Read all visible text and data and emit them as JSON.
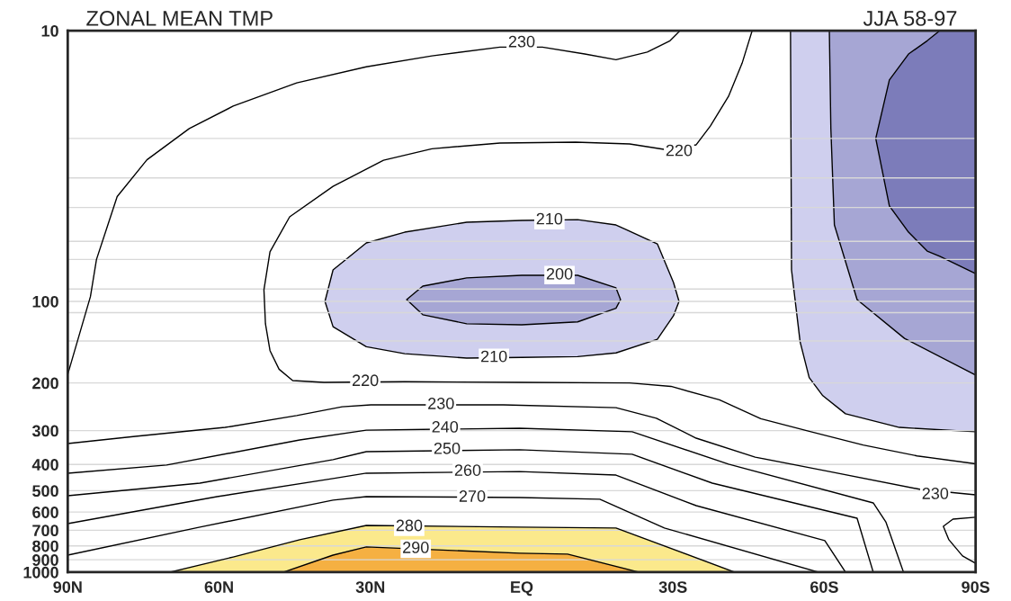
{
  "chart_data": {
    "type": "line",
    "title": "ZONAL MEAN TMP",
    "subtitle": "JJA 58-97",
    "series": [
      {
        "x": [
          -53.3,
          -53.5,
          -55.2,
          -57.0,
          -59.7,
          -64.2,
          -74.9,
          -90
        ],
        "values": [
          null,
          null,
          null,
          null,
          null,
          null,
          null,
          null
        ],
        "lower": [
          10,
          10,
          10,
          10,
          10,
          10,
          10,
          10
        ],
        "upper": [
          10,
          76.5,
          141,
          191,
          223,
          260,
          292,
          303
        ],
        "color": "#cfcfee"
      },
      {
        "x": [
          -61.0,
          -61.3,
          -62.0,
          -66.5,
          -75.9,
          -90
        ],
        "values": [
          null,
          null,
          null,
          null,
          null,
          null
        ],
        "lower": [
          10,
          10,
          10,
          10,
          10,
          10
        ],
        "upper": [
          10,
          23,
          52.2,
          98.5,
          137,
          187
        ],
        "color": "#a6a6d4"
      },
      {
        "x": [
          -70.2,
          -72.9,
          -76.7,
          -80.4,
          -82.9,
          -90
        ],
        "values": [
          null,
          null,
          null,
          null,
          null,
          null
        ],
        "lower": [
          25.0,
          15.2,
          12.2,
          10.9,
          10,
          10
        ],
        "upper": [
          25.0,
          44.4,
          55.5,
          65.2,
          68.2,
          78.9
        ],
        "color": "#7c7cba"
      },
      {
        "x": [
          39.0,
          37.4,
          30.8,
          23.2,
          10.9,
          0,
          -11.1,
          -18.7,
          -26.9,
          -30.1,
          -31.2
        ],
        "values": [
          null,
          null,
          null,
          null,
          null,
          null,
          null,
          null,
          null,
          null,
          null
        ],
        "lower": [
          100,
          76.5,
          60.8,
          55.5,
          51.0,
          50.2,
          49.9,
          52.2,
          61.3,
          85.2,
          100
        ],
        "upper": [
          100,
          124,
          147,
          156,
          162,
          161,
          160,
          155,
          138,
          113,
          100
        ],
        "color": "#cfcfee"
      },
      {
        "x": [
          22.8,
          19.6,
          10.9,
          0,
          -11.1,
          -18.7,
          -19.6
        ],
        "values": [
          null,
          null,
          null,
          null,
          null,
          null,
          null
        ],
        "lower": [
          98.5,
          87.8,
          81.9,
          80.1,
          80.1,
          89.1,
          98.5
        ],
        "upper": [
          98.5,
          112,
          121,
          122,
          119,
          106,
          98.5
        ],
        "color": "#a6a6d4"
      },
      {
        "type": "area",
        "x": [
          69.7,
          57.2,
          44.0,
          30.8,
          0.4,
          -18.7,
          -42.2
        ],
        "values": [
          1000,
          879,
          759,
          672,
          682,
          687,
          1000
        ],
        "color": "#fbe98c"
      },
      {
        "type": "area",
        "x": [
          47.2,
          37.4,
          30.8,
          0.4,
          -9.1,
          -23.2
        ],
        "values": [
          1000,
          865,
          807,
          851,
          858,
          1000
        ],
        "color": "#f5b042"
      },
      {
        "x": [
          90,
          85.5,
          84.3,
          80.2,
          74.3,
          65.9,
          57.2,
          44.6,
          30.8,
          17.8,
          4.3,
          -4.1,
          -12.5,
          -18.7,
          -24.9,
          -29.4,
          -31.4
        ],
        "values": [
          186,
          96,
          70,
          41,
          30,
          23,
          19,
          15.6,
          13.6,
          12.4,
          11.5,
          11.5,
          12.2,
          12.8,
          12.0,
          10.9,
          10
        ],
        "color": "#000000"
      },
      {
        "x": [
          -45.7,
          -43.7,
          -41.0,
          -37.4,
          -34.6,
          -28.5,
          -21.4,
          -10.7,
          4.3,
          17.8,
          27.4,
          37.4,
          46.0,
          49.9,
          51.1,
          50.8,
          49.9,
          48.1,
          45.4,
          39.2,
          23.2,
          0,
          -21.4,
          -29.6,
          -39.2,
          -47.4,
          -57.0,
          -67.7,
          -78.4,
          -90
        ],
        "values": [
          10,
          13.2,
          17.5,
          22.5,
          26.4,
          27.5,
          26.2,
          25.8,
          26.0,
          27.3,
          30.1,
          37.6,
          48.7,
          65.6,
          90.6,
          121,
          152,
          178,
          196,
          199,
          198,
          199,
          200,
          206,
          231,
          271,
          302,
          339,
          372,
          398
        ],
        "color": "#000000"
      },
      {
        "x": [
          90,
          76.6,
          58.8,
          44.6,
          35.6,
          29.9,
          3.6,
          -18.7,
          -26.7,
          -34.6,
          -46.3,
          -60.1,
          -79.1,
          -90
        ],
        "values": [
          335,
          315,
          292,
          264,
          245,
          241,
          241,
          247,
          270,
          320,
          376,
          422,
          495,
          518
        ],
        "color": "#000000"
      },
      {
        "x": [
          90,
          70.4,
          44.0,
          30.8,
          0.4,
          -21.9,
          -41.0,
          -69.7,
          -72.2,
          -75.7
        ],
        "values": [
          431,
          402,
          325,
          299,
          294,
          303,
          399,
          555,
          652,
          1000
        ],
        "color": "#000000"
      },
      {
        "x": [
          90,
          63.8,
          37.4,
          30.8,
          0.4,
          -21.9,
          -37.8,
          -66.5,
          -69.7
        ],
        "values": [
          522,
          469,
          384,
          359,
          353,
          367,
          469,
          632,
          1000
        ],
        "color": "#000000"
      },
      {
        "x": [
          90,
          60.4,
          37.4,
          30.8,
          0.4,
          -18.7,
          -34.6,
          -60.1,
          -64.2
        ],
        "values": [
          662,
          526,
          451,
          431,
          425,
          438,
          568,
          765,
          1000
        ],
        "color": "#000000"
      },
      {
        "x": [
          90,
          63.8,
          37.4,
          30.8,
          0.4,
          -15.5,
          -28.3,
          -58.8
        ],
        "values": [
          865,
          682,
          542,
          526,
          530,
          538,
          687,
          1000
        ],
        "color": "#000000"
      },
      {
        "x": [
          -90,
          -85.5,
          -83.6,
          -84.7,
          -87.4,
          -90
        ],
        "values": [
          627,
          637,
          677,
          759,
          871,
          927
        ],
        "color": "#000000"
      }
    ],
    "annotations": [
      {
        "text": "230",
        "x": 0,
        "y": 11.1
      },
      {
        "text": "220",
        "x": -31.2,
        "y": 28
      },
      {
        "text": "210",
        "x": -5.5,
        "y": 50.1
      },
      {
        "text": "200",
        "x": -7.5,
        "y": 80
      },
      {
        "text": "210",
        "x": 5.5,
        "y": 161.5
      },
      {
        "text": "220",
        "x": 31,
        "y": 198
      },
      {
        "text": "230",
        "x": 16.0,
        "y": 241
      },
      {
        "text": "240",
        "x": 15.2,
        "y": 294
      },
      {
        "text": "250",
        "x": 14.8,
        "y": 353
      },
      {
        "text": "260",
        "x": 10.7,
        "y": 425
      },
      {
        "text": "270",
        "x": 9.8,
        "y": 530
      },
      {
        "text": "280",
        "x": 22.3,
        "y": 680
      },
      {
        "text": "290",
        "x": 21.0,
        "y": 820
      },
      {
        "text": "230",
        "x": -82.0,
        "y": 518
      }
    ],
    "xlim": [
      90,
      -90
    ],
    "xticks": [
      {
        "value": 90,
        "label": "90N"
      },
      {
        "value": 60,
        "label": "60N"
      },
      {
        "value": 30,
        "label": "30N"
      },
      {
        "value": 0,
        "label": "EQ"
      },
      {
        "value": -30,
        "label": "30S"
      },
      {
        "value": -60,
        "label": "60S"
      },
      {
        "value": -90,
        "label": "90S"
      }
    ],
    "ylim": [
      1000,
      10
    ],
    "log": "y",
    "grid": "y",
    "yticks": [
      10,
      {
        "value": 25,
        "label": null
      },
      {
        "value": 35,
        "label": null
      },
      {
        "value": 45,
        "label": null
      },
      {
        "value": 60,
        "label": null
      },
      {
        "value": 70,
        "label": null
      },
      {
        "value": 90,
        "label": null
      },
      100,
      {
        "value": 110,
        "label": null
      },
      {
        "value": 140,
        "label": null
      },
      200,
      300,
      400,
      500,
      600,
      700,
      800,
      900,
      1000
    ]
  }
}
